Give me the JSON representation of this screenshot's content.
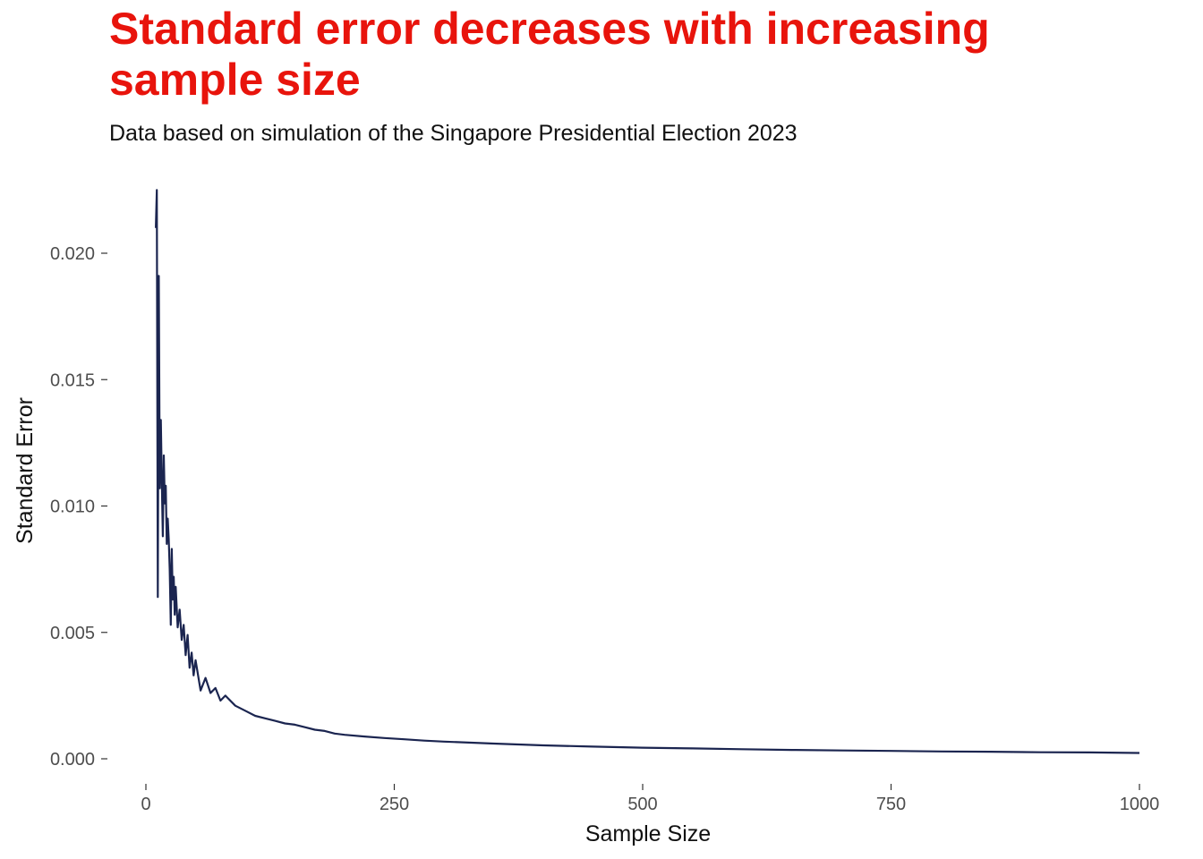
{
  "chart_data": {
    "type": "line",
    "title": "Standard error decreases with increasing sample size",
    "subtitle": "Data based on simulation of the Singapore Presidential Election 2023",
    "xlabel": "Sample Size",
    "ylabel": "Standard Error",
    "xlim": [
      0,
      1000
    ],
    "ylim": [
      0,
      0.022
    ],
    "x_ticks": [
      0,
      250,
      500,
      750,
      1000
    ],
    "y_ticks": [
      0.0,
      0.005,
      0.01,
      0.015,
      0.02
    ],
    "x_tick_labels": [
      "0",
      "250",
      "500",
      "750",
      "1000"
    ],
    "y_tick_labels": [
      "0.000",
      "0.005",
      "0.010",
      "0.015",
      "0.020"
    ],
    "grid": false,
    "legend": "none",
    "line_color": "#1b2550",
    "series": [
      {
        "x": [
          10,
          11,
          12,
          13,
          14,
          15,
          16,
          17,
          18,
          19,
          20,
          21,
          22,
          23,
          24,
          25,
          26,
          27,
          28,
          29,
          30,
          32,
          34,
          36,
          38,
          40,
          42,
          44,
          46,
          48,
          50,
          55,
          60,
          65,
          70,
          75,
          80,
          90,
          100,
          110,
          120,
          130,
          140,
          150,
          160,
          170,
          180,
          190,
          200,
          220,
          240,
          260,
          280,
          300,
          350,
          400,
          450,
          500,
          550,
          600,
          650,
          700,
          750,
          800,
          850,
          900,
          950,
          1000
        ],
        "values": [
          0.021,
          0.0225,
          0.0064,
          0.0191,
          0.0107,
          0.0134,
          0.0109,
          0.0088,
          0.012,
          0.0101,
          0.0108,
          0.0085,
          0.0095,
          0.0087,
          0.0075,
          0.0053,
          0.0083,
          0.0063,
          0.0072,
          0.0057,
          0.0068,
          0.0052,
          0.0059,
          0.0047,
          0.0053,
          0.0041,
          0.0049,
          0.0036,
          0.0042,
          0.0033,
          0.0039,
          0.0027,
          0.0032,
          0.0026,
          0.0028,
          0.0023,
          0.0025,
          0.0021,
          0.0019,
          0.0017,
          0.0016,
          0.0015,
          0.0014,
          0.00135,
          0.00125,
          0.00115,
          0.0011,
          0.001,
          0.00095,
          0.00088,
          0.00082,
          0.00077,
          0.00072,
          0.00068,
          0.0006,
          0.00053,
          0.00048,
          0.00044,
          0.00041,
          0.00038,
          0.00035,
          0.00033,
          0.00031,
          0.00029,
          0.00028,
          0.00026,
          0.00025,
          0.00023
        ]
      }
    ]
  }
}
